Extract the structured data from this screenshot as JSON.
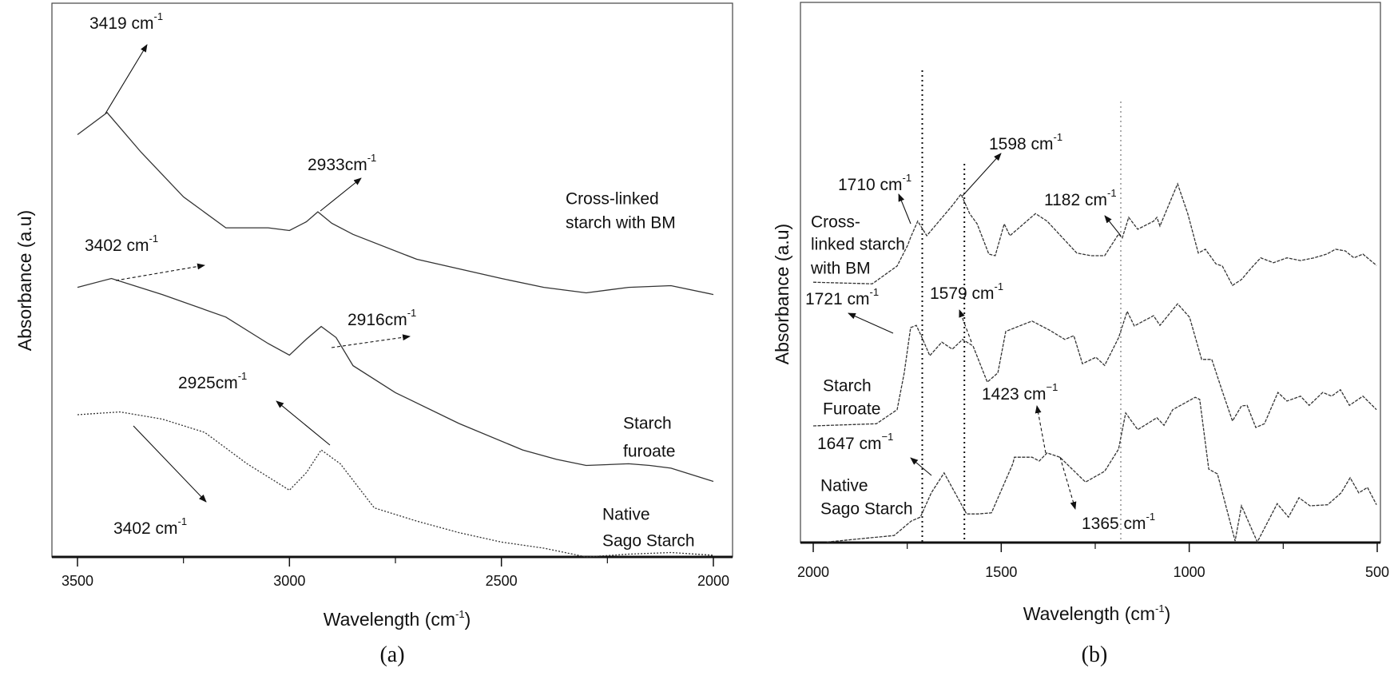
{
  "chart_data": [
    {
      "type": "line",
      "panel": "(a)",
      "xlabel": "Wavelength (cm",
      "xlabel_sup": "-1",
      "xlabel_end": ")",
      "ylabel": "Absorbance (a.u)",
      "xlim": [
        3500,
        2000
      ],
      "x_reversed": true,
      "ylim": [
        0,
        100
      ],
      "x_ticks": [
        3500,
        3000,
        2500,
        2000
      ],
      "x_tick_labels": [
        "3500",
        "3000",
        "2500",
        "2000"
      ],
      "x_minor_ticks": [
        3250,
        2750,
        2250
      ],
      "grid": false,
      "series": [
        {
          "name": "Cross-linked starch with BM",
          "label_lines": [
            "Cross-linked",
            "starch with BM"
          ],
          "style": "solid",
          "points": [
            [
              3500,
              76.6
            ],
            [
              3430,
              80.6
            ],
            [
              3350,
              73.4
            ],
            [
              3250,
              65.3
            ],
            [
              3150,
              59.7
            ],
            [
              3050,
              59.7
            ],
            [
              3000,
              59.2
            ],
            [
              2960,
              60.8
            ],
            [
              2933,
              62.6
            ],
            [
              2900,
              60.5
            ],
            [
              2850,
              58.5
            ],
            [
              2700,
              54.0
            ],
            [
              2500,
              50.5
            ],
            [
              2400,
              48.9
            ],
            [
              2300,
              47.9
            ],
            [
              2200,
              48.9
            ],
            [
              2100,
              49.2
            ],
            [
              2000,
              47.6
            ]
          ]
        },
        {
          "name": "Starch furoate",
          "label_lines": [
            "Starch",
            "furoate"
          ],
          "style": "solid",
          "points": [
            [
              3500,
              48.9
            ],
            [
              3420,
              50.5
            ],
            [
              3300,
              47.6
            ],
            [
              3150,
              43.5
            ],
            [
              3050,
              38.7
            ],
            [
              3000,
              36.6
            ],
            [
              2960,
              39.5
            ],
            [
              2925,
              41.8
            ],
            [
              2890,
              39.8
            ],
            [
              2850,
              34.7
            ],
            [
              2750,
              29.8
            ],
            [
              2600,
              24.2
            ],
            [
              2450,
              19.4
            ],
            [
              2370,
              17.7
            ],
            [
              2300,
              16.6
            ],
            [
              2200,
              16.9
            ],
            [
              2150,
              16.6
            ],
            [
              2100,
              16.1
            ],
            [
              2000,
              13.7
            ]
          ]
        },
        {
          "name": "Native Sago Starch",
          "label_lines": [
            "Native",
            "Sago Starch"
          ],
          "style": "dotted",
          "points": [
            [
              3500,
              25.8
            ],
            [
              3400,
              26.3
            ],
            [
              3300,
              25.0
            ],
            [
              3200,
              22.6
            ],
            [
              3100,
              16.9
            ],
            [
              3000,
              12.1
            ],
            [
              2960,
              15.3
            ],
            [
              2925,
              19.4
            ],
            [
              2880,
              16.9
            ],
            [
              2800,
              8.9
            ],
            [
              2700,
              6.5
            ],
            [
              2600,
              4.4
            ],
            [
              2500,
              2.7
            ],
            [
              2400,
              1.6
            ],
            [
              2350,
              0.8
            ],
            [
              2300,
              0.0
            ],
            [
              2200,
              0.5
            ],
            [
              2100,
              0.8
            ],
            [
              2000,
              0.3
            ]
          ]
        }
      ],
      "annotations": [
        {
          "text": "3419 cm",
          "sup": "-1",
          "arrow": "solid"
        },
        {
          "text": "2933cm",
          "sup": "-1",
          "arrow": "solid"
        },
        {
          "text": "3402 cm",
          "sup": "-1",
          "arrow": "dashed"
        },
        {
          "text": "2916cm",
          "sup": "-1",
          "arrow": "dashed"
        },
        {
          "text": "2925cm",
          "sup": "-1",
          "arrow": "solid"
        },
        {
          "text": "3402 cm",
          "sup": "-1",
          "arrow": "solid"
        }
      ]
    },
    {
      "type": "line",
      "panel": "(b)",
      "xlabel": "Wavelength (cm",
      "xlabel_sup": "-1",
      "xlabel_end": ")",
      "ylabel": "Absorbance (a.u)",
      "xlim": [
        2000,
        500
      ],
      "x_reversed": true,
      "ylim": [
        0,
        100
      ],
      "x_ticks": [
        2000,
        1500,
        1000,
        500
      ],
      "x_tick_labels": [
        "2000",
        "1500",
        "1000",
        "500"
      ],
      "x_minor_ticks": [
        1750,
        1250,
        750
      ],
      "grid": false,
      "reference_lines": [
        1710,
        1598,
        1182
      ],
      "series": [
        {
          "name": "Cross-linked starch with BM",
          "label_lines": [
            "Cross-",
            "linked starch",
            "with BM"
          ],
          "style": "dashed",
          "points": [
            [
              2000,
              48.2
            ],
            [
              1843,
              47.9
            ],
            [
              1777,
              51.2
            ],
            [
              1749,
              55.0
            ],
            [
              1741,
              56.5
            ],
            [
              1722,
              59.5
            ],
            [
              1698,
              56.8
            ],
            [
              1630,
              62.4
            ],
            [
              1607,
              64.5
            ],
            [
              1584,
              60.9
            ],
            [
              1564,
              59.0
            ],
            [
              1533,
              53.4
            ],
            [
              1516,
              53.1
            ],
            [
              1492,
              59.0
            ],
            [
              1477,
              56.8
            ],
            [
              1409,
              60.9
            ],
            [
              1378,
              59.5
            ],
            [
              1299,
              53.6
            ],
            [
              1261,
              53.1
            ],
            [
              1225,
              53.1
            ],
            [
              1188,
              57.1
            ],
            [
              1178,
              56.4
            ],
            [
              1161,
              60.2
            ],
            [
              1137,
              58.0
            ],
            [
              1095,
              59.5
            ],
            [
              1086,
              60.2
            ],
            [
              1078,
              58.6
            ],
            [
              1031,
              66.4
            ],
            [
              1004,
              60.9
            ],
            [
              976,
              53.6
            ],
            [
              957,
              54.3
            ],
            [
              929,
              51.6
            ],
            [
              912,
              51.2
            ],
            [
              885,
              47.6
            ],
            [
              861,
              48.7
            ],
            [
              834,
              50.9
            ],
            [
              810,
              52.7
            ],
            [
              776,
              51.8
            ],
            [
              740,
              52.7
            ],
            [
              704,
              52.2
            ],
            [
              668,
              52.7
            ],
            [
              634,
              53.4
            ],
            [
              611,
              54.3
            ],
            [
              585,
              54.0
            ],
            [
              562,
              52.7
            ],
            [
              538,
              53.4
            ],
            [
              502,
              51.3
            ]
          ]
        },
        {
          "name": "Starch Furoate",
          "label_lines": [
            "Starch",
            "Furoate"
          ],
          "style": "dashed",
          "points": [
            [
              2000,
              21.6
            ],
            [
              1832,
              22.0
            ],
            [
              1777,
              24.6
            ],
            [
              1758,
              31.4
            ],
            [
              1741,
              39.8
            ],
            [
              1726,
              40.2
            ],
            [
              1713,
              38.3
            ],
            [
              1690,
              34.6
            ],
            [
              1658,
              37.1
            ],
            [
              1630,
              35.8
            ],
            [
              1603,
              37.6
            ],
            [
              1575,
              36.4
            ],
            [
              1537,
              29.7
            ],
            [
              1509,
              31.4
            ],
            [
              1488,
              39.1
            ],
            [
              1418,
              41.0
            ],
            [
              1371,
              39.3
            ],
            [
              1331,
              37.6
            ],
            [
              1307,
              38.3
            ],
            [
              1284,
              33.1
            ],
            [
              1248,
              34.3
            ],
            [
              1225,
              32.8
            ],
            [
              1188,
              37.9
            ],
            [
              1165,
              42.8
            ],
            [
              1146,
              40.1
            ],
            [
              1095,
              42.0
            ],
            [
              1078,
              40.2
            ],
            [
              1031,
              44.2
            ],
            [
              999,
              41.7
            ],
            [
              967,
              33.9
            ],
            [
              940,
              33.9
            ],
            [
              912,
              28.0
            ],
            [
              885,
              22.5
            ],
            [
              861,
              25.3
            ],
            [
              846,
              25.4
            ],
            [
              823,
              21.3
            ],
            [
              800,
              22.0
            ],
            [
              764,
              27.8
            ],
            [
              740,
              26.2
            ],
            [
              704,
              27.1
            ],
            [
              681,
              25.4
            ],
            [
              645,
              27.8
            ],
            [
              621,
              27.1
            ],
            [
              598,
              28.3
            ],
            [
              574,
              25.4
            ],
            [
              538,
              27.1
            ],
            [
              502,
              24.6
            ]
          ]
        },
        {
          "name": "Native Sago Starch",
          "label_lines": [
            "Native",
            "Sago Starch"
          ],
          "style": "dashed",
          "points": [
            [
              1964,
              0.1
            ],
            [
              1785,
              1.3
            ],
            [
              1739,
              4.0
            ],
            [
              1715,
              4.7
            ],
            [
              1686,
              9.2
            ],
            [
              1652,
              12.9
            ],
            [
              1592,
              5.3
            ],
            [
              1562,
              5.3
            ],
            [
              1526,
              5.5
            ],
            [
              1469,
              14.6
            ],
            [
              1465,
              15.8
            ],
            [
              1418,
              15.8
            ],
            [
              1399,
              15.1
            ],
            [
              1378,
              16.6
            ],
            [
              1344,
              15.8
            ],
            [
              1276,
              11.2
            ],
            [
              1225,
              13.2
            ],
            [
              1188,
              17.3
            ],
            [
              1169,
              24.0
            ],
            [
              1137,
              20.9
            ],
            [
              1086,
              23.1
            ],
            [
              1067,
              21.7
            ],
            [
              1044,
              24.6
            ],
            [
              984,
              26.9
            ],
            [
              972,
              26.5
            ],
            [
              948,
              13.6
            ],
            [
              925,
              12.7
            ],
            [
              878,
              0.3
            ],
            [
              861,
              6.8
            ],
            [
              819,
              0.1
            ],
            [
              766,
              7.2
            ],
            [
              736,
              4.7
            ],
            [
              708,
              8.3
            ],
            [
              679,
              6.8
            ],
            [
              632,
              7.0
            ],
            [
              596,
              9.2
            ],
            [
              572,
              12.0
            ],
            [
              549,
              9.2
            ],
            [
              526,
              10.2
            ],
            [
              502,
              7.0
            ]
          ]
        }
      ],
      "annotations": [
        {
          "text": "1598 cm",
          "sup": "-1",
          "arrow": "solid"
        },
        {
          "text": "1710 cm",
          "sup": "-1",
          "arrow": "solid"
        },
        {
          "text": "1182 cm",
          "sup": "-1",
          "arrow": "solid"
        },
        {
          "text": "1721 cm",
          "sup": "-1",
          "arrow": "solid"
        },
        {
          "text": "1579 cm",
          "sup": "-1",
          "arrow": "dashed"
        },
        {
          "text": "1423 cm",
          "sup": "−1",
          "arrow": "dashed"
        },
        {
          "text": "1647 cm",
          "sup": "−1",
          "arrow": "solid"
        },
        {
          "text": "1365 cm",
          "sup": "-1",
          "arrow": "dashed"
        }
      ]
    }
  ]
}
